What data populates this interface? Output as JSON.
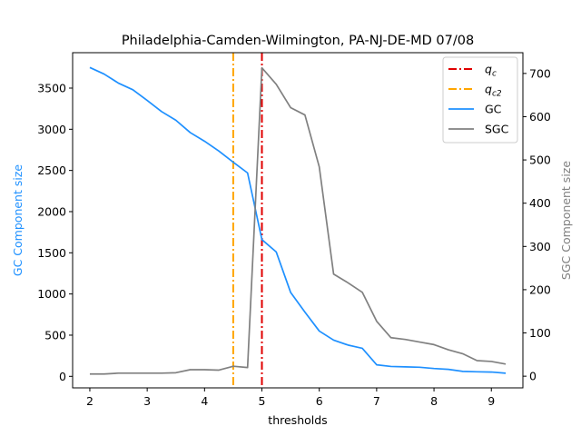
{
  "chart_data": {
    "type": "line",
    "title": "Philadelphia-Camden-Wilmington, PA-NJ-DE-MD 07/08",
    "xlabel": "thresholds",
    "ylabel_left": "GC Component size",
    "ylabel_right": "SGC Component size",
    "xlim": [
      1.7,
      9.55
    ],
    "ylim_left": [
      -140,
      3930
    ],
    "ylim_right": [
      -27,
      748
    ],
    "xticks": [
      2,
      3,
      4,
      5,
      6,
      7,
      8,
      9
    ],
    "yticks_left": [
      0,
      500,
      1000,
      1500,
      2000,
      2500,
      3000,
      3500
    ],
    "yticks_right": [
      0,
      100,
      200,
      300,
      400,
      500,
      600,
      700
    ],
    "vlines": [
      {
        "name": "q_c",
        "label_main": "q",
        "label_sub": "c",
        "x": 5.0,
        "color": "#e00000",
        "style": "dashdot"
      },
      {
        "name": "q_c2",
        "label_main": "q",
        "label_sub": "c2",
        "x": 4.5,
        "color": "#ffa500",
        "style": "dashdot"
      }
    ],
    "series": [
      {
        "name": "GC",
        "axis": "left",
        "color": "#1e90ff",
        "x": [
          2.0,
          2.25,
          2.5,
          2.75,
          3.0,
          3.25,
          3.5,
          3.75,
          4.0,
          4.25,
          4.5,
          4.75,
          5.0,
          5.25,
          5.5,
          5.75,
          6.0,
          6.25,
          6.5,
          6.75,
          7.0,
          7.25,
          7.5,
          7.75,
          8.0,
          8.25,
          8.5,
          8.75,
          9.0,
          9.25
        ],
        "values": [
          3750,
          3670,
          3560,
          3480,
          3350,
          3215,
          3110,
          2960,
          2855,
          2735,
          2600,
          2470,
          1660,
          1510,
          1020,
          780,
          550,
          440,
          380,
          340,
          140,
          120,
          115,
          110,
          95,
          85,
          60,
          55,
          52,
          38
        ]
      },
      {
        "name": "SGC",
        "axis": "right",
        "color": "#808080",
        "x": [
          2.0,
          2.25,
          2.5,
          2.75,
          3.0,
          3.25,
          3.5,
          3.75,
          4.0,
          4.25,
          4.5,
          4.75,
          5.0,
          5.25,
          5.5,
          5.75,
          6.0,
          6.25,
          6.5,
          6.75,
          7.0,
          7.25,
          7.5,
          7.75,
          8.0,
          8.25,
          8.5,
          8.75,
          9.0,
          9.25
        ],
        "values": [
          5,
          5,
          7,
          7,
          7,
          7,
          8,
          15,
          15,
          14,
          23,
          20,
          713,
          675,
          621,
          604,
          484,
          236,
          216,
          194,
          127,
          89,
          85,
          79,
          73,
          61,
          52,
          36,
          34,
          28
        ]
      }
    ],
    "legend_position": "top-right",
    "grid": false
  }
}
